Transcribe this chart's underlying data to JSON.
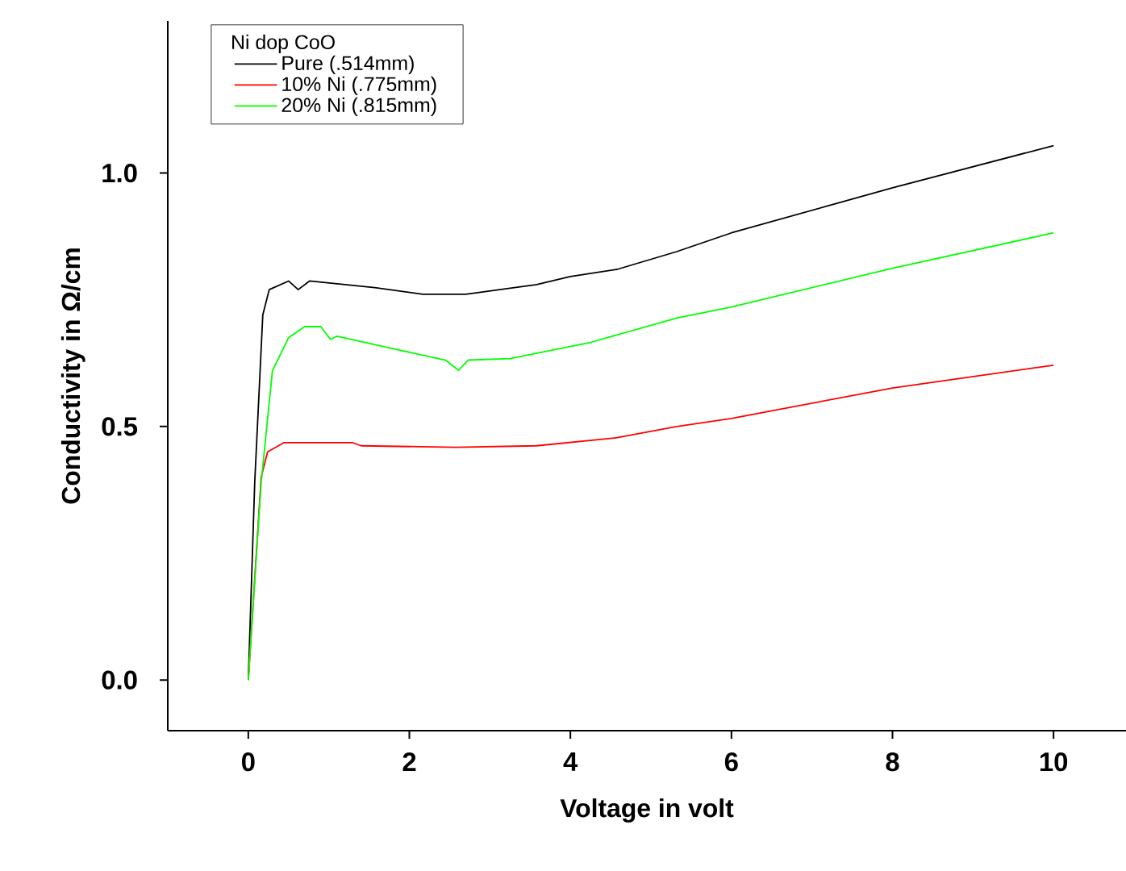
{
  "chart_data": {
    "type": "line",
    "xlabel": "Voltage in volt",
    "ylabel": "Conductivity in Ω/cm",
    "legend_title": "Ni dop CoO",
    "legend": "top left",
    "grid": false,
    "marker": "none",
    "line_style": "solid",
    "xlim": [
      -1,
      10.9
    ],
    "ylim": [
      -0.1,
      1.3
    ],
    "xticks": [
      0,
      2,
      4,
      6,
      8,
      10
    ],
    "yticks": [
      {
        "value": 0,
        "label": "0.0"
      },
      {
        "value": 0.5,
        "label": "0.5"
      },
      {
        "value": 1,
        "label": "1.0"
      }
    ],
    "series": [
      {
        "name": "Pure (.514mm)",
        "color": "#000000",
        "x": [
          0,
          0.08,
          0.18,
          0.26,
          0.5,
          0.62,
          0.76,
          1.57,
          2.17,
          2.7,
          3.58,
          4.0,
          4.58,
          5.32,
          6,
          8,
          10
        ],
        "values": [
          0,
          0.39,
          0.72,
          0.77,
          0.787,
          0.77,
          0.787,
          0.774,
          0.761,
          0.761,
          0.78,
          0.796,
          0.81,
          0.845,
          0.882,
          0.971,
          1.054
        ]
      },
      {
        "name": "10% Ni (.775mm)",
        "color": "#ff0000",
        "x": [
          0,
          0.16,
          0.24,
          0.44,
          1.3,
          1.4,
          2.57,
          3.58,
          4.58,
          5.32,
          6,
          8,
          10
        ],
        "values": [
          0,
          0.4,
          0.45,
          0.468,
          0.468,
          0.462,
          0.459,
          0.462,
          0.478,
          0.5,
          0.516,
          0.576,
          0.621
        ]
      },
      {
        "name": "20% Ni (.815mm)",
        "color": "#00ff00",
        "x": [
          0,
          0.16,
          0.3,
          0.5,
          0.7,
          0.9,
          1.02,
          1.1,
          1.9,
          2.45,
          2.61,
          2.73,
          3.25,
          4.25,
          5.32,
          6,
          8,
          10
        ],
        "values": [
          0,
          0.39,
          0.61,
          0.675,
          0.697,
          0.697,
          0.672,
          0.678,
          0.65,
          0.631,
          0.611,
          0.631,
          0.634,
          0.666,
          0.714,
          0.736,
          0.812,
          0.882
        ]
      }
    ]
  }
}
